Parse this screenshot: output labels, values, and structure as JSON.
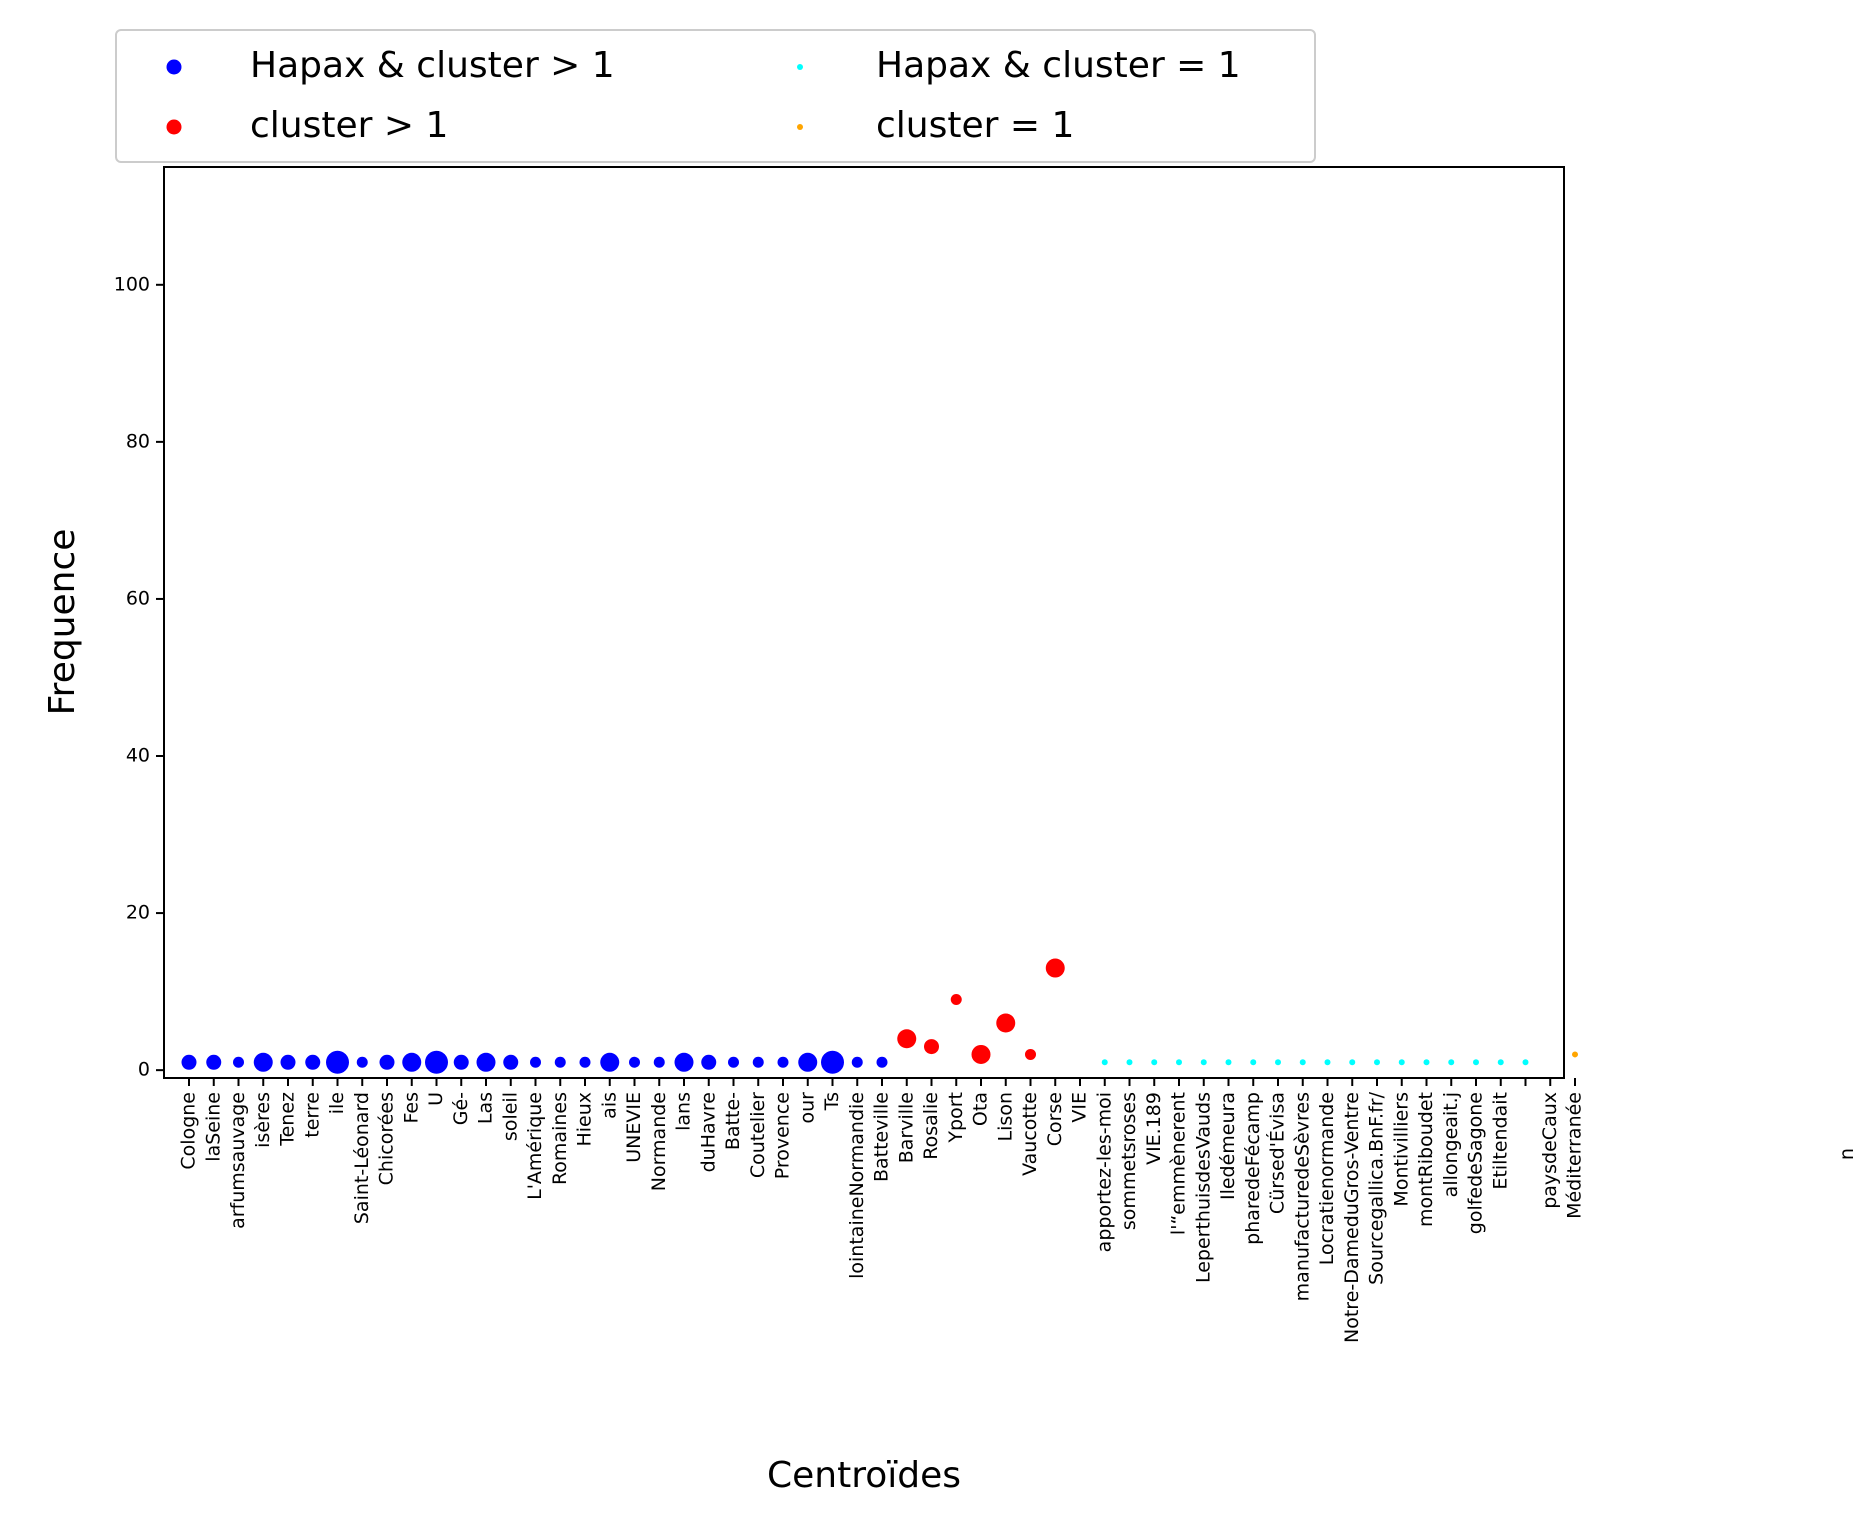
{
  "chart_data": {
    "type": "scatter",
    "title": "",
    "xlabel": "Centroïdes",
    "ylabel": "Frequence",
    "ylim": [
      -1,
      115
    ],
    "yticks": [
      0,
      20,
      40,
      60,
      80,
      100
    ],
    "legend_position": "top-left, outside above plot",
    "categories": [
      "Cologne",
      "laSeine",
      "arfumsauvage",
      "isères",
      "Tenez",
      "terre",
      "ile",
      "Saint-Léonard",
      "Chicorées",
      "Fes",
      "U",
      "Gé-",
      "Las",
      "soleil",
      "L'Amérique",
      "Romaines",
      "Hieux",
      "ais",
      "UNEVIE",
      "Normande",
      "lans",
      "duHavre",
      "Batte-",
      "Coutelier",
      "Provence",
      "our",
      "Ts",
      "lointaineNormandie",
      "Batteville",
      "Barville",
      "Rosalie",
      "Yport",
      "Ota",
      "Lison",
      "Vaucotte",
      "Corse",
      "VIE",
      "apportez-les-moi",
      "sommetsroses",
      "VIE.189",
      "l'“emmènerent",
      "LeperthuisdesVauds",
      "Iledémeura",
      "pharedeFécamp",
      "Cürsed'Évisa",
      "manufacturedeSèvres",
      "Locratienormande",
      "Notre-DameduGros-Ventre",
      "Sourcegallica.BnF.fr/",
      "Montivilliers",
      "montRiboudet",
      "allongeait.j",
      "golfedeSagone",
      "Etiltendait",
      "",
      "paysdeCaux",
      "Méditerranée"
    ],
    "series": [
      {
        "name": "Hapax & cluster > 1",
        "color": "#0000ff",
        "points": [
          {
            "x": "Cologne",
            "y": 1,
            "size": 2
          },
          {
            "x": "laSeine",
            "y": 1,
            "size": 2
          },
          {
            "x": "arfumsauvage",
            "y": 1,
            "size": 1
          },
          {
            "x": "isères",
            "y": 1,
            "size": 3
          },
          {
            "x": "Tenez",
            "y": 1,
            "size": 2
          },
          {
            "x": "terre",
            "y": 1,
            "size": 2
          },
          {
            "x": "ile",
            "y": 1,
            "size": 4
          },
          {
            "x": "Saint-Léonard",
            "y": 1,
            "size": 1
          },
          {
            "x": "Chicorées",
            "y": 1,
            "size": 2
          },
          {
            "x": "Fes",
            "y": 1,
            "size": 3
          },
          {
            "x": "U",
            "y": 1,
            "size": 4
          },
          {
            "x": "Gé-",
            "y": 1,
            "size": 2
          },
          {
            "x": "Las",
            "y": 1,
            "size": 3
          },
          {
            "x": "soleil",
            "y": 1,
            "size": 2
          },
          {
            "x": "L'Amérique",
            "y": 1,
            "size": 1
          },
          {
            "x": "Romaines",
            "y": 1,
            "size": 1
          },
          {
            "x": "Hieux",
            "y": 1,
            "size": 1
          },
          {
            "x": "ais",
            "y": 1,
            "size": 3
          },
          {
            "x": "UNEVIE",
            "y": 1,
            "size": 1
          },
          {
            "x": "Normande",
            "y": 1,
            "size": 1
          },
          {
            "x": "lans",
            "y": 1,
            "size": 3
          },
          {
            "x": "duHavre",
            "y": 1,
            "size": 2
          },
          {
            "x": "Batte-",
            "y": 1,
            "size": 1
          },
          {
            "x": "Coutelier",
            "y": 1,
            "size": 1
          },
          {
            "x": "Provence",
            "y": 1,
            "size": 1
          },
          {
            "x": "our",
            "y": 1,
            "size": 3
          },
          {
            "x": "Ts",
            "y": 1,
            "size": 4
          },
          {
            "x": "lointaineNormandie",
            "y": 1,
            "size": 1
          },
          {
            "x": "Batteville",
            "y": 1,
            "size": 1
          }
        ]
      },
      {
        "name": "cluster > 1",
        "color": "#ff0000",
        "points": [
          {
            "x": "Barville",
            "y": 4,
            "size": 3
          },
          {
            "x": "Rosalie",
            "y": 3,
            "size": 2
          },
          {
            "x": "Yport",
            "y": 9,
            "size": 1
          },
          {
            "x": "Ota",
            "y": 2,
            "size": 3
          },
          {
            "x": "Lison",
            "y": 6,
            "size": 3
          },
          {
            "x": "Vaucotte",
            "y": 2,
            "size": 1
          },
          {
            "x": "Corse",
            "y": 13,
            "size": 3
          }
        ]
      },
      {
        "name": "Hapax & cluster = 1",
        "color": "#00ffff",
        "points": [
          {
            "x": "apportez-les-moi",
            "y": 1,
            "size": 0
          },
          {
            "x": "sommetsroses",
            "y": 1,
            "size": 0
          },
          {
            "x": "VIE.189",
            "y": 1,
            "size": 0
          },
          {
            "x": "l'“emmènerent",
            "y": 1,
            "size": 0
          },
          {
            "x": "LeperthuisdesVauds",
            "y": 1,
            "size": 0
          },
          {
            "x": "Iledémeura",
            "y": 1,
            "size": 0
          },
          {
            "x": "pharedeFécamp",
            "y": 1,
            "size": 0
          },
          {
            "x": "Cürsed'Évisa",
            "y": 1,
            "size": 0
          },
          {
            "x": "manufacturedeSèvres",
            "y": 1,
            "size": 0
          },
          {
            "x": "Locratienormande",
            "y": 1,
            "size": 0
          },
          {
            "x": "Notre-DameduGros-Ventre",
            "y": 1,
            "size": 0
          },
          {
            "x": "Sourcegallica.BnF.fr/",
            "y": 1,
            "size": 0
          },
          {
            "x": "Montivilliers",
            "y": 1,
            "size": 0
          },
          {
            "x": "montRiboudet",
            "y": 1,
            "size": 0
          },
          {
            "x": "allongeait.j",
            "y": 1,
            "size": 0
          },
          {
            "x": "golfedeSagone",
            "y": 1,
            "size": 0
          },
          {
            "x": "Etiltendait",
            "y": 1,
            "size": 0
          },
          {
            "x": "",
            "y": 1,
            "size": 0
          }
        ]
      },
      {
        "name": "cluster = 1",
        "color": "#ffa500",
        "points": [
          {
            "x": "Méditerranée",
            "y": 2,
            "size": 0
          }
        ]
      }
    ],
    "stray_label": "u"
  }
}
